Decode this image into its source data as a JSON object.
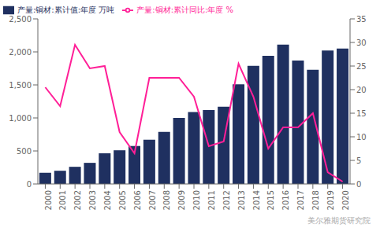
{
  "chart_data": {
    "type": "bar",
    "categories": [
      "2000",
      "2001",
      "2002",
      "2003",
      "2004",
      "2005",
      "2006",
      "2007",
      "2008",
      "2009",
      "2010",
      "2011",
      "2012",
      "2013",
      "2014",
      "2015",
      "2016",
      "2017",
      "2018",
      "2019",
      "2020"
    ],
    "series": [
      {
        "name": "产量:铜材:累计值:年度 万吨",
        "type": "bar",
        "color": "#1f3060",
        "values": [
          170,
          200,
          260,
          320,
          465,
          510,
          575,
          670,
          790,
          1000,
          1090,
          1120,
          1170,
          1510,
          1790,
          1940,
          2110,
          1870,
          1730,
          2020,
          2050
        ]
      },
      {
        "name": "产量:铜材:累计同比:年度 %",
        "type": "line",
        "color": "#ff1f97",
        "axis": "y2",
        "values": [
          20.5,
          16.5,
          29.5,
          24.5,
          25.0,
          11.0,
          6.5,
          22.5,
          22.5,
          22.5,
          18.5,
          8.0,
          9.0,
          25.5,
          18.5,
          7.5,
          12.0,
          12.0,
          15.0,
          2.5,
          0.5
        ]
      }
    ],
    "ylim": [
      0,
      2500
    ],
    "yticks": [
      0,
      500,
      {
        "value": 1000,
        "label": "1,000"
      },
      {
        "value": 1500,
        "label": "1,500"
      },
      {
        "value": 2000,
        "label": "2,000"
      },
      {
        "value": 2500,
        "label": "2,500"
      }
    ],
    "y2lim": [
      0,
      35
    ],
    "y2ticks": [
      0,
      5,
      10,
      15,
      20,
      25,
      30,
      35
    ],
    "grid": false,
    "legend": "top-left",
    "annotations": [
      "美尔雅期货研究院"
    ]
  }
}
